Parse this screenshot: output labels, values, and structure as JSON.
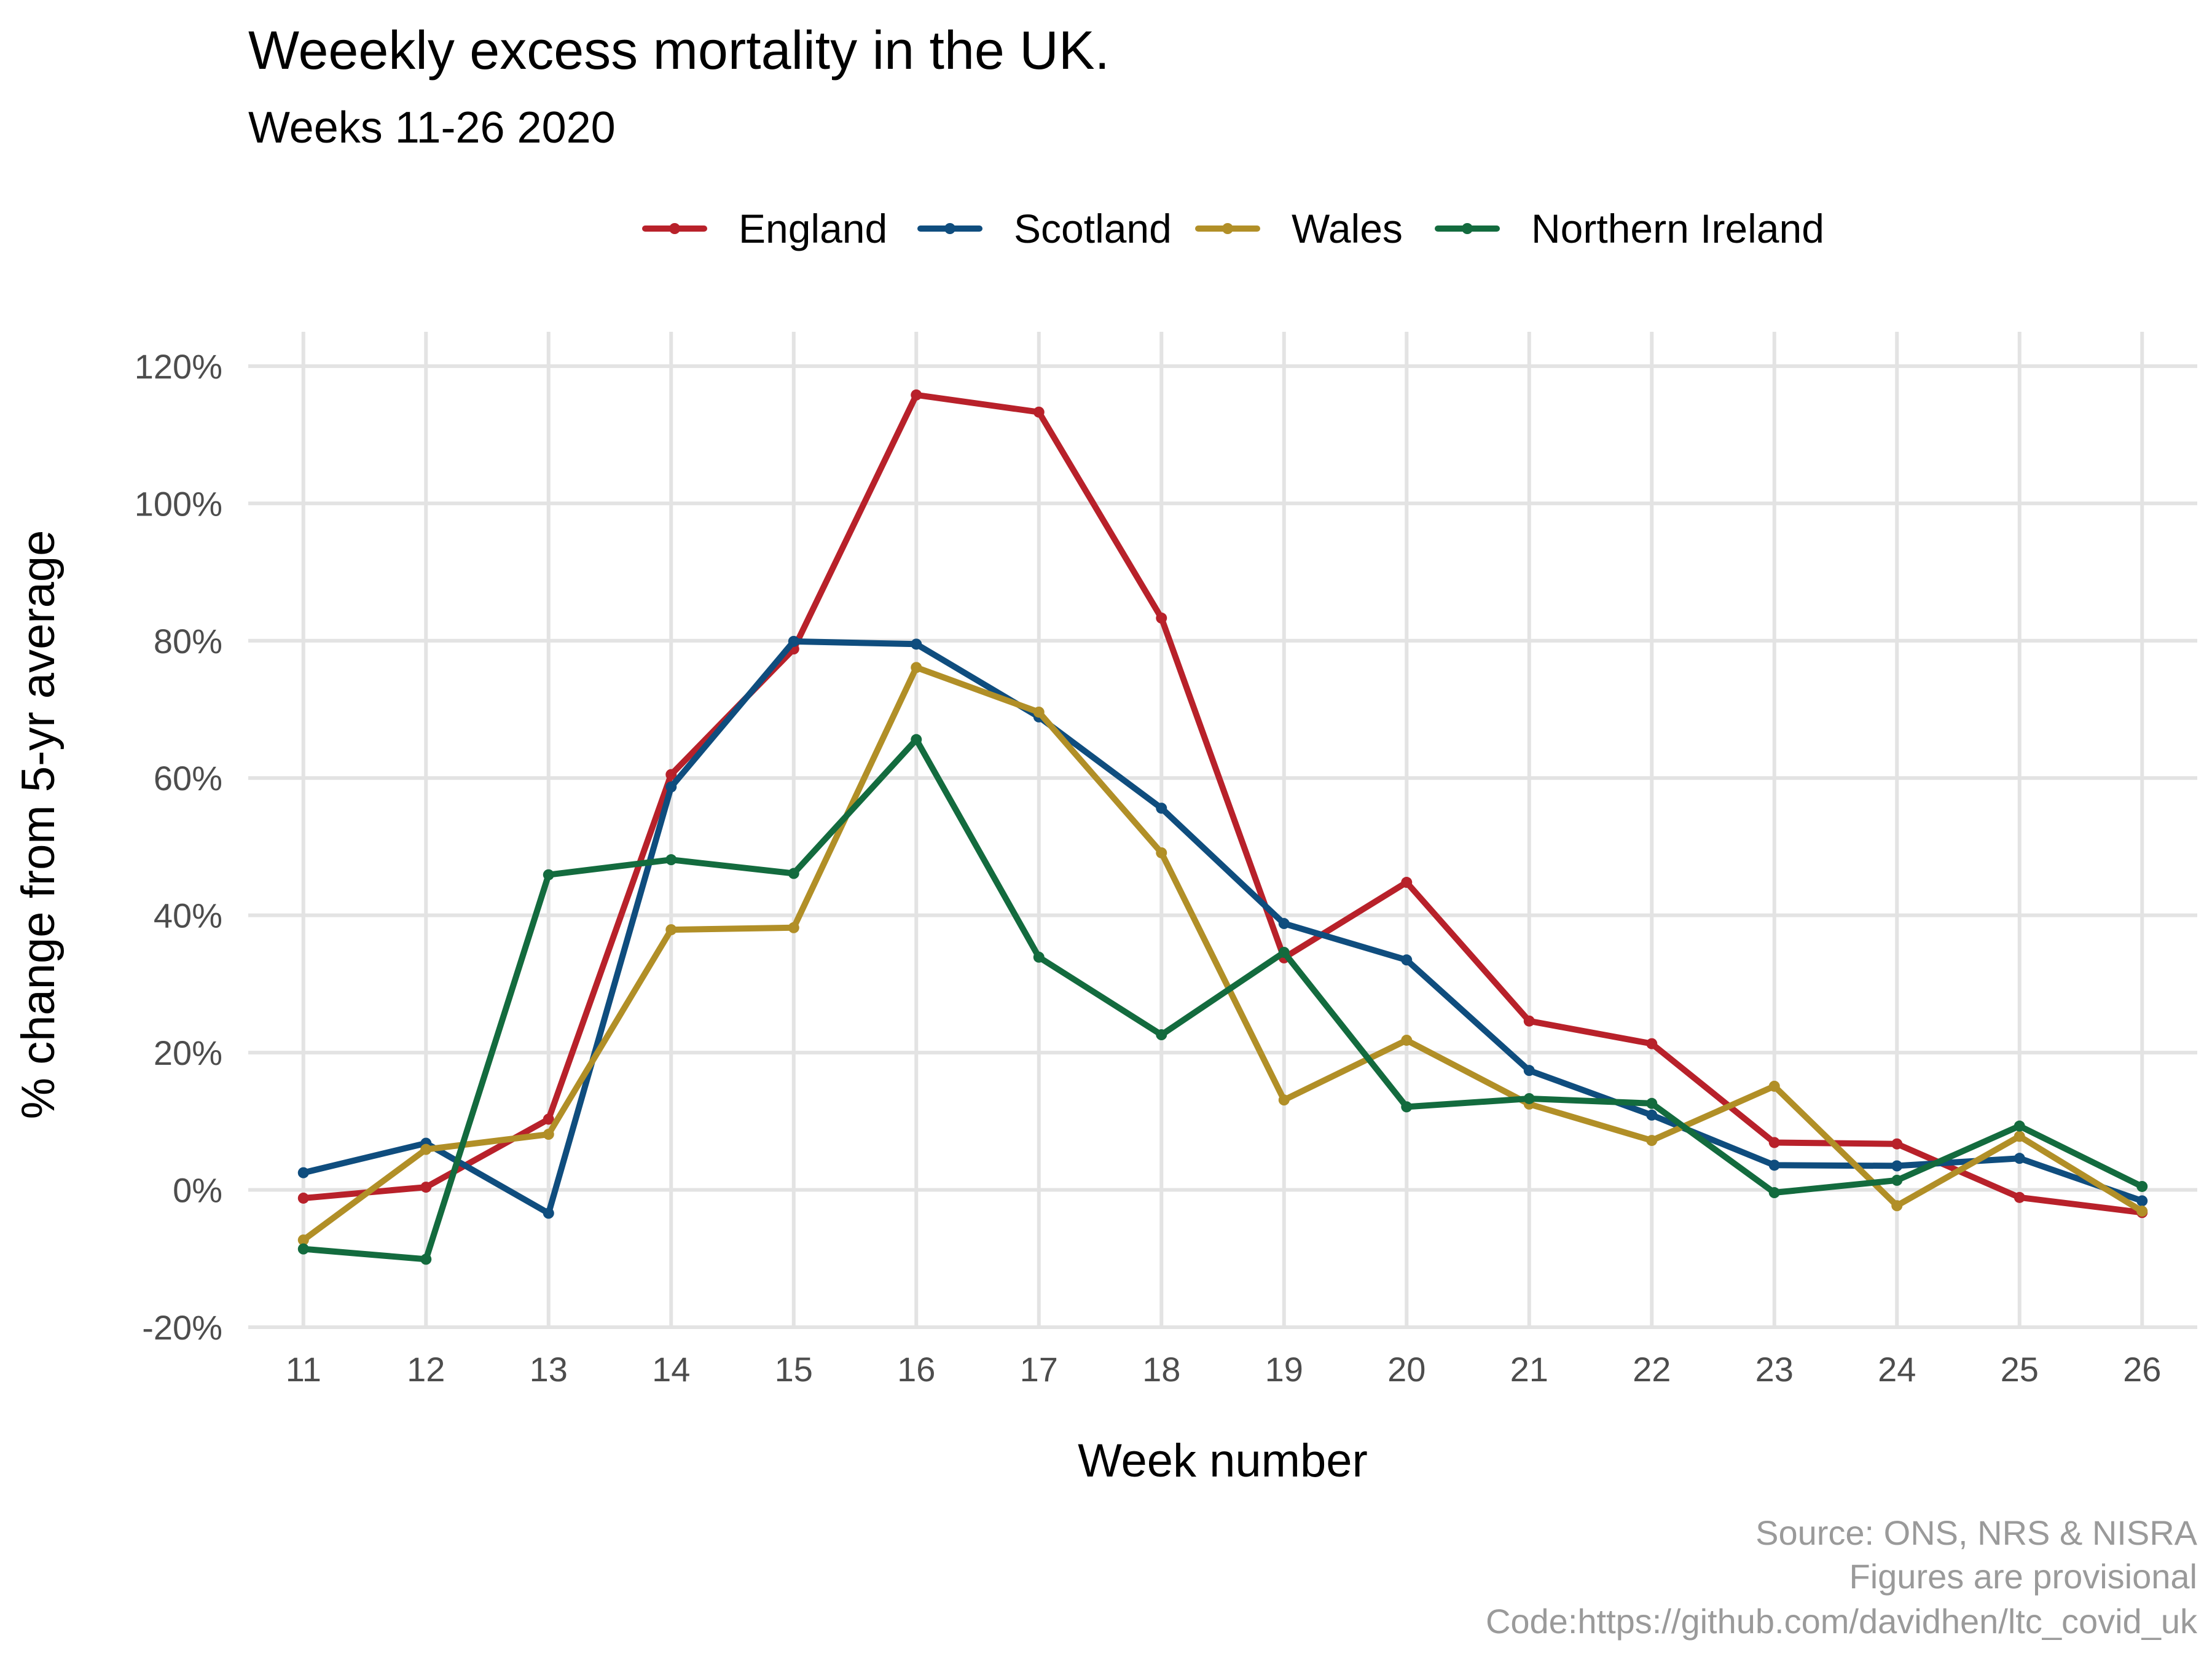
{
  "chart_data": {
    "type": "line",
    "title": "Weeekly excess mortality in the UK.",
    "subtitle": "Weeks 11-26 2020",
    "xlabel": "Week number",
    "ylabel": "% change from 5-yr average",
    "x": [
      11,
      12,
      13,
      14,
      15,
      16,
      17,
      18,
      19,
      20,
      21,
      22,
      23,
      24,
      25,
      26
    ],
    "x_tick_labels": [
      "11",
      "12",
      "13",
      "14",
      "15",
      "16",
      "17",
      "18",
      "19",
      "20",
      "21",
      "22",
      "23",
      "24",
      "25",
      "26"
    ],
    "y_ticks": [
      -20,
      0,
      20,
      40,
      60,
      80,
      100,
      120
    ],
    "y_tick_labels": [
      "-20%",
      "0%",
      "20%",
      "40%",
      "60%",
      "80%",
      "100%",
      "120%"
    ],
    "ylim": [
      -20,
      125
    ],
    "grid": true,
    "legend_position": "top",
    "series": [
      {
        "name": "England",
        "color": "#b8212a",
        "values": [
          -1.2,
          0.4,
          10.3,
          60.5,
          78.8,
          115.8,
          113.3,
          83.3,
          33.8,
          44.8,
          24.6,
          21.3,
          6.9,
          6.7,
          -1.1,
          -3.3
        ]
      },
      {
        "name": "Scotland",
        "color": "#0f4d7e",
        "values": [
          2.5,
          6.8,
          -3.4,
          58.7,
          79.9,
          79.5,
          68.9,
          55.6,
          38.8,
          33.5,
          17.4,
          10.9,
          3.6,
          3.5,
          4.6,
          -1.6
        ]
      },
      {
        "name": "Wales",
        "color": "#b18f27",
        "values": [
          -7.3,
          5.9,
          8.1,
          37.9,
          38.2,
          76.1,
          69.6,
          49.1,
          13.1,
          21.8,
          12.5,
          7.2,
          15.1,
          -2.3,
          7.8,
          -3.1
        ]
      },
      {
        "name": "Northern Ireland",
        "color": "#136b3e",
        "values": [
          -8.6,
          -10.1,
          45.9,
          48.1,
          46.1,
          65.6,
          33.9,
          22.6,
          34.6,
          12.1,
          13.3,
          12.6,
          -0.4,
          1.4,
          9.3,
          0.5
        ]
      }
    ],
    "caption": [
      "Source: ONS, NRS & NISRA",
      "Figures are provisional",
      "Code:https://github.com/davidhen/ltc_covid_uk"
    ]
  }
}
